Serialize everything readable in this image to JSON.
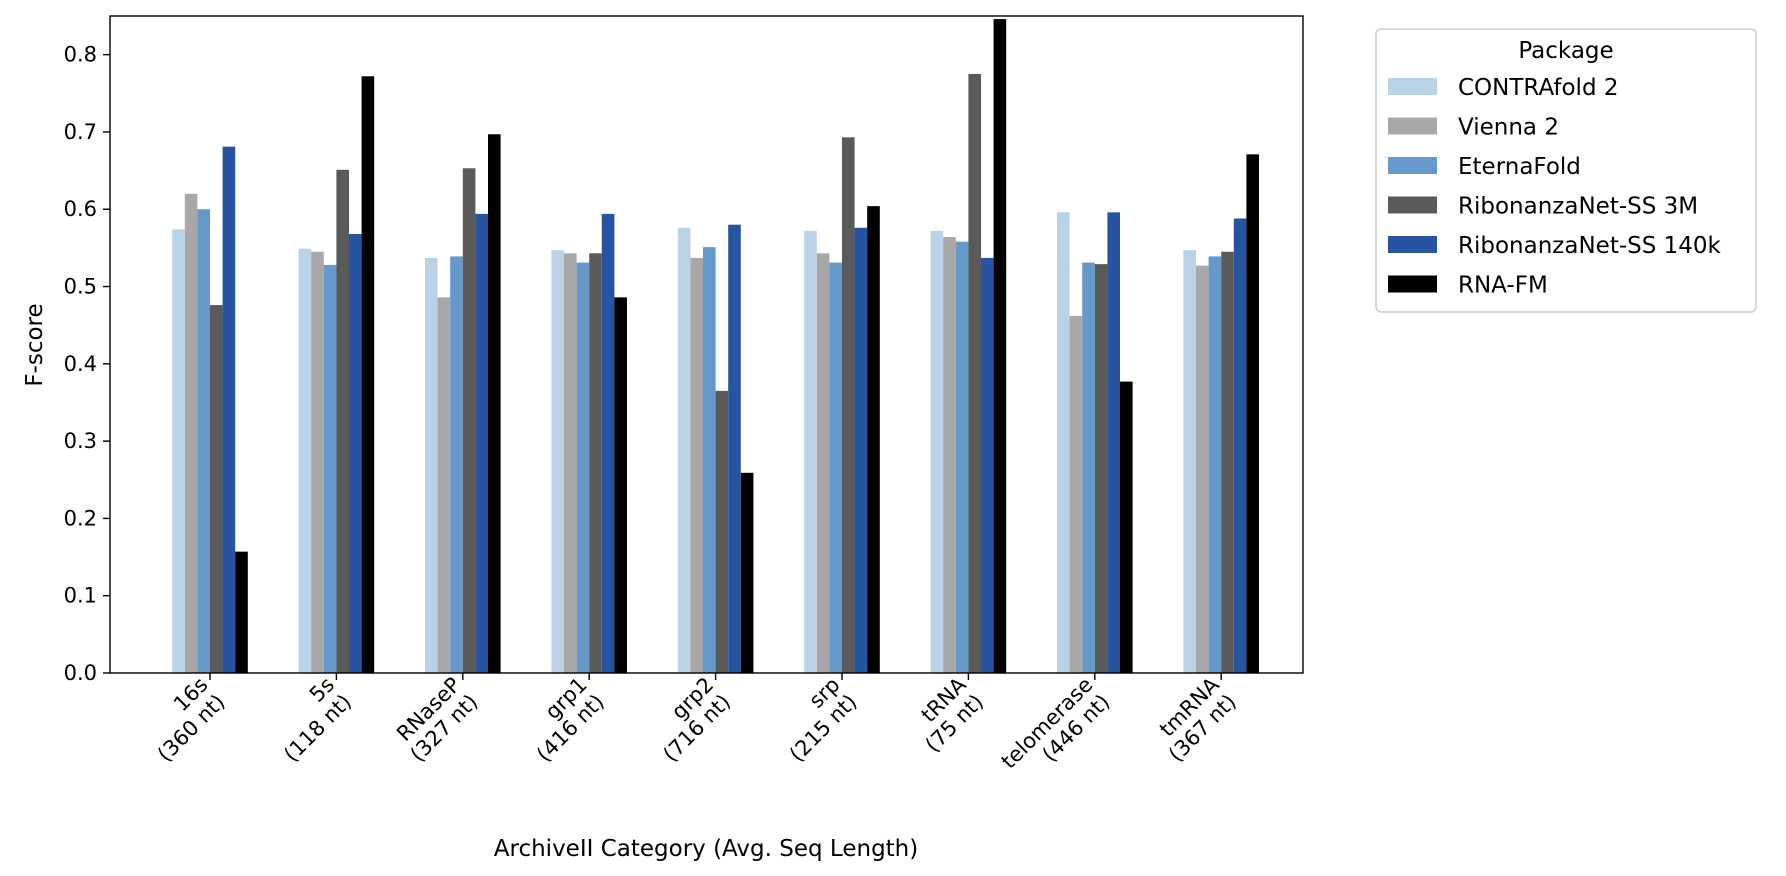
{
  "chart_data": {
    "type": "bar",
    "xlabel": "ArchiveII Category (Avg. Seq Length)",
    "ylabel": "F-score",
    "ylim": [
      0,
      0.85
    ],
    "yticks": [
      "0.0",
      "0.1",
      "0.2",
      "0.3",
      "0.4",
      "0.5",
      "0.6",
      "0.7",
      "0.8"
    ],
    "categories": [
      [
        "16s",
        "(360 nt)"
      ],
      [
        "5s",
        "(118 nt)"
      ],
      [
        "RNaseP",
        "(327 nt)"
      ],
      [
        "grp1",
        "(416 nt)"
      ],
      [
        "grp2",
        "(716 nt)"
      ],
      [
        "srp",
        "(215 nt)"
      ],
      [
        "tRNA",
        "(75 nt)"
      ],
      [
        "telomerase",
        "(446 nt)"
      ],
      [
        "tmRNA",
        "(367 nt)"
      ]
    ],
    "legend_title": "Package",
    "legend_position": "outside-top-right",
    "grid": false,
    "series": [
      {
        "name": "CONTRAfold 2",
        "color": "#bad2e8",
        "values": [
          0.574,
          0.549,
          0.537,
          0.547,
          0.576,
          0.572,
          0.572,
          0.596,
          0.547
        ]
      },
      {
        "name": "Vienna 2",
        "color": "#a8a8a8",
        "values": [
          0.62,
          0.545,
          0.486,
          0.543,
          0.537,
          0.543,
          0.564,
          0.462,
          0.527
        ]
      },
      {
        "name": "EternaFold",
        "color": "#6499c9",
        "values": [
          0.6,
          0.528,
          0.539,
          0.531,
          0.551,
          0.531,
          0.558,
          0.531,
          0.539
        ]
      },
      {
        "name": "RibonanzaNet-SS 3M",
        "color": "#5a5a5a",
        "values": [
          0.476,
          0.651,
          0.653,
          0.543,
          0.365,
          0.693,
          0.775,
          0.529,
          0.545
        ]
      },
      {
        "name": "RibonanzaNet-SS 140k",
        "color": "#2654a0",
        "values": [
          0.681,
          0.568,
          0.594,
          0.594,
          0.58,
          0.576,
          0.537,
          0.596,
          0.588
        ]
      },
      {
        "name": "RNA-FM",
        "color": "#000000",
        "values": [
          0.157,
          0.772,
          0.697,
          0.486,
          0.259,
          0.604,
          0.846,
          0.377,
          0.671
        ]
      }
    ]
  }
}
